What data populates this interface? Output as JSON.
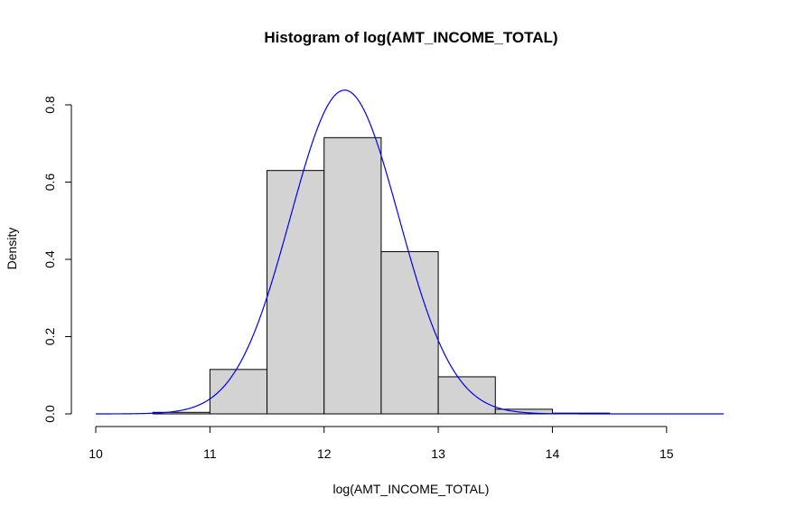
{
  "chart_data": {
    "type": "bar",
    "title": "Histogram of log(AMT_INCOME_TOTAL)",
    "xlabel": "log(AMT_INCOME_TOTAL)",
    "ylabel": "Density",
    "xlim": [
      10,
      15.5
    ],
    "ylim": [
      0,
      0.8
    ],
    "x_ticks": [
      "10",
      "11",
      "12",
      "13",
      "14",
      "15"
    ],
    "y_ticks": [
      "0.0",
      "0.2",
      "0.4",
      "0.6",
      "0.8"
    ],
    "bins": [
      {
        "from": 10.5,
        "to": 11.0,
        "density": 0.004
      },
      {
        "from": 11.0,
        "to": 11.5,
        "density": 0.115
      },
      {
        "from": 11.5,
        "to": 12.0,
        "density": 0.63
      },
      {
        "from": 12.0,
        "to": 12.5,
        "density": 0.715
      },
      {
        "from": 12.5,
        "to": 13.0,
        "density": 0.42
      },
      {
        "from": 13.0,
        "to": 13.5,
        "density": 0.096
      },
      {
        "from": 13.5,
        "to": 14.0,
        "density": 0.012
      },
      {
        "from": 14.0,
        "to": 14.5,
        "density": 0.002
      }
    ],
    "curve": {
      "type": "normal-density",
      "mean": 12.18,
      "sd": 0.476,
      "x_range": [
        10,
        15.5
      ]
    },
    "colors": {
      "bar_fill": "#d3d3d3",
      "bar_stroke": "#000000",
      "curve": "#0000ff"
    },
    "grid": false,
    "legend": "none"
  }
}
